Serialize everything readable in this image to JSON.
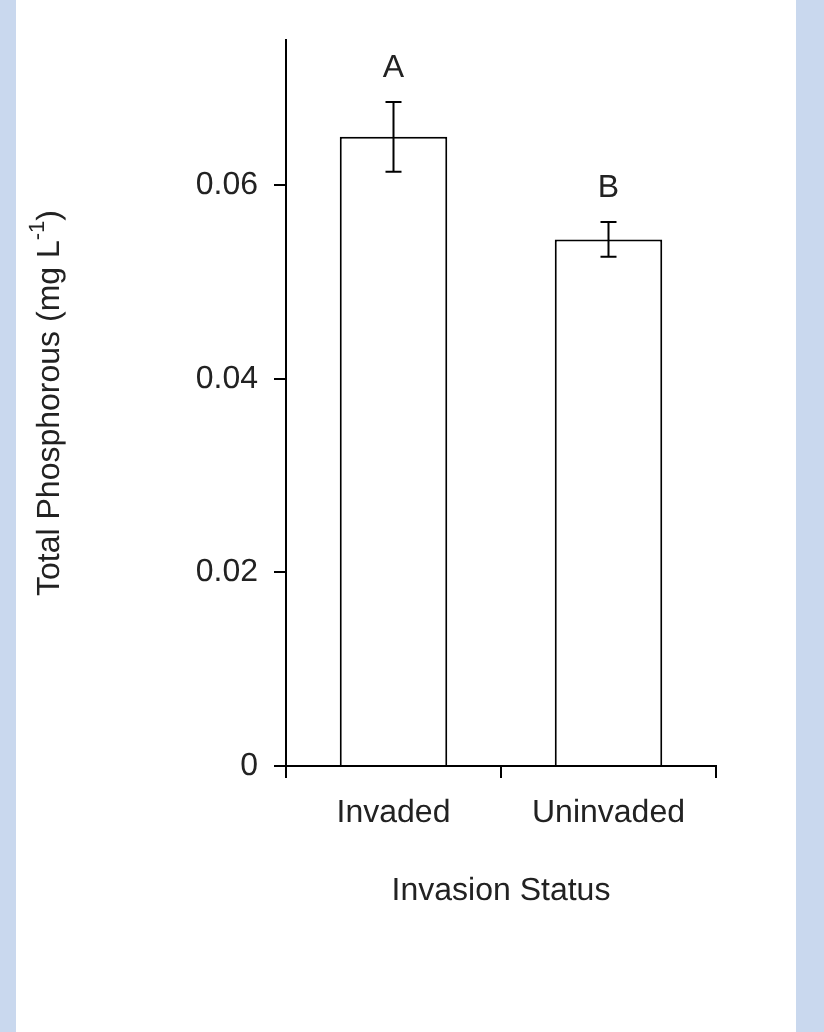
{
  "chart_data": {
    "type": "bar",
    "xlabel": "Invasion Status",
    "ylabel": "Total Phosphorous (mg L$^{-1}$)",
    "categories": [
      "Invaded",
      "Uninvaded"
    ],
    "values": [
      0.065,
      0.0544
    ],
    "errors": [
      0.0036,
      0.0018
    ],
    "color": "#ffffff",
    "ylim": [
      0,
      0.075
    ],
    "yticks": [
      0,
      0.02,
      0.04,
      0.06
    ],
    "grid": false,
    "legend": false,
    "annotations": [
      "A",
      "B"
    ]
  }
}
